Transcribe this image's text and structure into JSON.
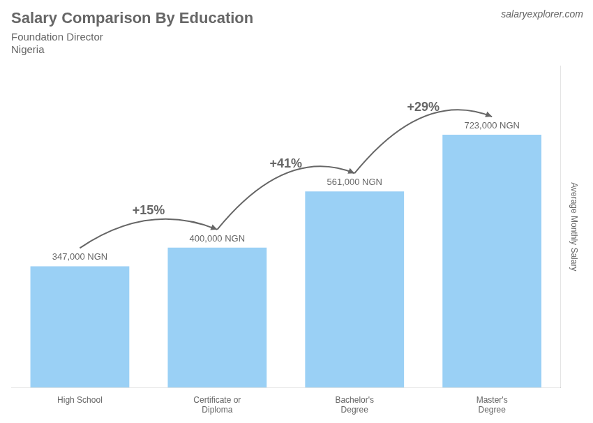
{
  "chart_data": {
    "type": "bar",
    "title": "Salary Comparison By Education",
    "subtitle": [
      "Foundation Director",
      "Nigeria"
    ],
    "source": "salaryexplorer.com",
    "ylabel": "Average Monthly Salary",
    "categories": [
      "High School",
      "Certificate or\nDiploma",
      "Bachelor's\nDegree",
      "Master's\nDegree"
    ],
    "values": [
      347000,
      400000,
      561000,
      723000
    ],
    "value_labels": [
      "347,000 NGN",
      "400,000 NGN",
      "561,000 NGN",
      "723,000 NGN"
    ],
    "data_labels": true,
    "annotations": [
      "+15%",
      "+41%",
      "+29%"
    ],
    "ylim": [
      0,
      920000
    ],
    "tick_labels": "x",
    "grid": false,
    "legend": false
  }
}
